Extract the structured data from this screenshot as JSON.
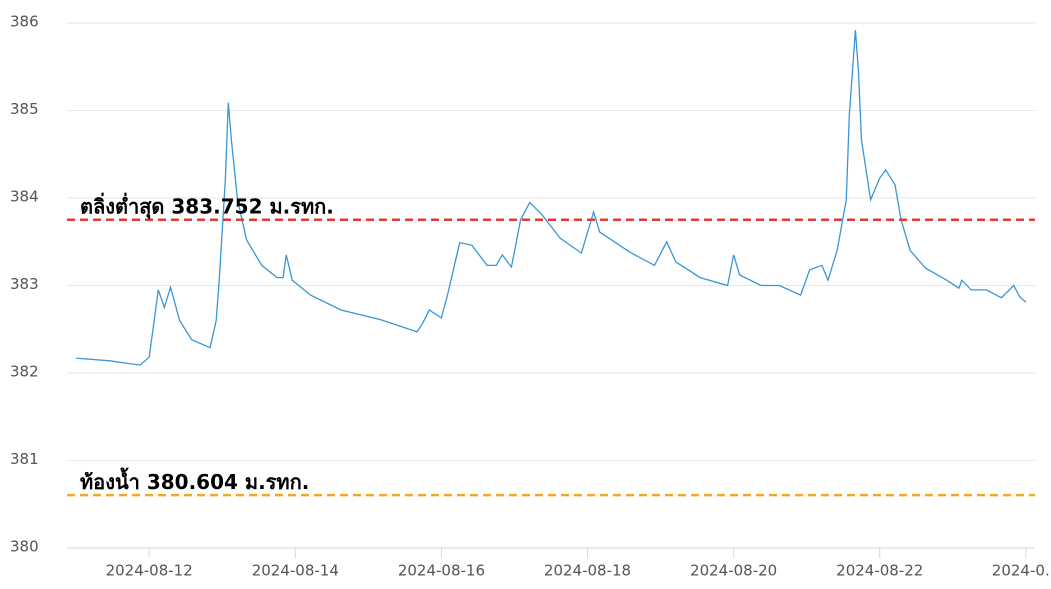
{
  "chart_data": {
    "type": "line",
    "x": [
      "2024-08-11 00:00",
      "2024-08-11 11:00",
      "2024-08-11 21:00",
      "2024-08-12 00:00",
      "2024-08-12 03:00",
      "2024-08-12 05:00",
      "2024-08-12 07:00",
      "2024-08-12 10:00",
      "2024-08-12 14:00",
      "2024-08-12 20:00",
      "2024-08-12 22:00",
      "2024-08-12 23:00",
      "2024-08-13 01:00",
      "2024-08-13 02:00",
      "2024-08-13 03:00",
      "2024-08-13 05:00",
      "2024-08-13 08:00",
      "2024-08-13 13:00",
      "2024-08-13 18:00",
      "2024-08-13 20:00",
      "2024-08-13 21:00",
      "2024-08-13 23:00",
      "2024-08-14 05:00",
      "2024-08-14 15:00",
      "2024-08-15 04:00",
      "2024-08-15 16:00",
      "2024-08-15 18:00",
      "2024-08-15 20:00",
      "2024-08-16 00:00",
      "2024-08-16 02:00",
      "2024-08-16 06:00",
      "2024-08-16 10:00",
      "2024-08-16 15:00",
      "2024-08-16 18:00",
      "2024-08-16 20:00",
      "2024-08-16 23:00",
      "2024-08-17 02:00",
      "2024-08-17 05:00",
      "2024-08-17 09:00",
      "2024-08-17 15:00",
      "2024-08-17 22:00",
      "2024-08-18 02:00",
      "2024-08-18 04:00",
      "2024-08-18 14:00",
      "2024-08-18 22:00",
      "2024-08-19 02:00",
      "2024-08-19 05:00",
      "2024-08-19 13:00",
      "2024-08-19 22:00",
      "2024-08-20 00:00",
      "2024-08-20 02:00",
      "2024-08-20 09:00",
      "2024-08-20 15:00",
      "2024-08-20 22:00",
      "2024-08-21 01:00",
      "2024-08-21 05:00",
      "2024-08-21 07:00",
      "2024-08-21 10:00",
      "2024-08-21 13:00",
      "2024-08-21 14:00",
      "2024-08-21 16:00",
      "2024-08-21 17:00",
      "2024-08-21 18:00",
      "2024-08-21 21:00",
      "2024-08-22 00:00",
      "2024-08-22 02:00",
      "2024-08-22 05:00",
      "2024-08-22 07:00",
      "2024-08-22 10:00",
      "2024-08-22 15:00",
      "2024-08-22 22:00",
      "2024-08-23 02:00",
      "2024-08-23 03:00",
      "2024-08-23 06:00",
      "2024-08-23 11:00",
      "2024-08-23 16:00",
      "2024-08-23 20:00",
      "2024-08-23 22:00",
      "2024-08-24 00:00"
    ],
    "series": [
      {
        "color": "#3a97d4",
        "values": [
          382.17,
          382.14,
          382.09,
          382.18,
          382.95,
          382.75,
          382.98,
          382.6,
          382.38,
          382.29,
          382.6,
          383.06,
          384.2,
          385.09,
          384.66,
          383.98,
          383.52,
          383.23,
          383.09,
          383.09,
          383.35,
          383.06,
          382.89,
          382.72,
          382.61,
          382.47,
          382.58,
          382.72,
          382.63,
          382.89,
          383.49,
          383.46,
          383.23,
          383.23,
          383.35,
          383.21,
          383.75,
          383.95,
          383.81,
          383.54,
          383.37,
          383.84,
          383.61,
          383.38,
          383.23,
          383.5,
          383.27,
          383.09,
          383.0,
          383.35,
          383.12,
          383.0,
          383.0,
          382.89,
          383.18,
          383.23,
          383.06,
          383.4,
          383.98,
          384.95,
          385.92,
          385.46,
          384.66,
          383.98,
          384.23,
          384.32,
          384.15,
          383.75,
          383.4,
          383.2,
          383.06,
          382.97,
          383.06,
          382.95,
          382.95,
          382.86,
          383.0,
          382.87,
          382.81
        ]
      }
    ],
    "xlim": [
      "2024-08-10 21:00",
      "2024-08-24 03:00"
    ],
    "xticks": [
      {
        "value": "2024-08-12 00:00",
        "label": "2024-08-12"
      },
      {
        "value": "2024-08-14 00:00",
        "label": "2024-08-14"
      },
      {
        "value": "2024-08-16 00:00",
        "label": "2024-08-16"
      },
      {
        "value": "2024-08-18 00:00",
        "label": "2024-08-18"
      },
      {
        "value": "2024-08-20 00:00",
        "label": "2024-08-20"
      },
      {
        "value": "2024-08-22 00:00",
        "label": "2024-08-22"
      },
      {
        "value": "2024-08-24 00:00",
        "label": "2024-0…"
      }
    ],
    "ylim": [
      380,
      386
    ],
    "yticks": [
      380,
      381,
      382,
      383,
      384,
      385,
      386
    ],
    "grid": true,
    "thresholds": [
      {
        "value": 383.752,
        "label": "ตลิ่งต่ำสุด 383.752 ม.รทก.",
        "color": "#e03c31"
      },
      {
        "value": 380.604,
        "label": "ท้องน้ำ 380.604 ม.รทก.",
        "color": "#f5a623"
      }
    ]
  }
}
